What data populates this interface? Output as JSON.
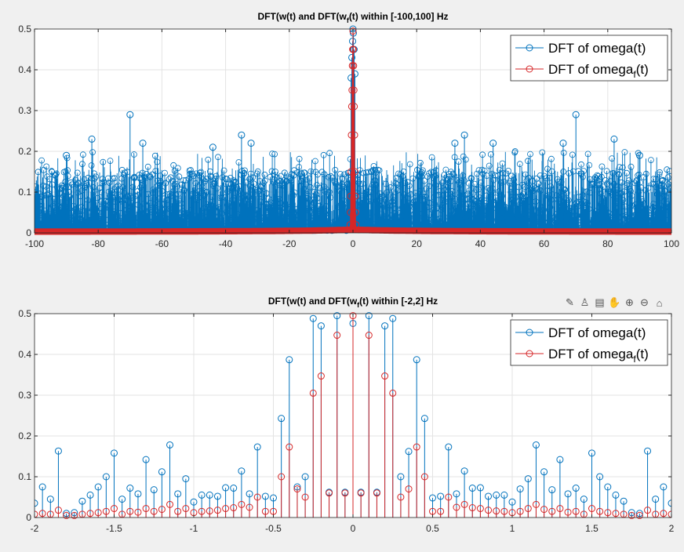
{
  "chart_data": [
    {
      "type": "stem",
      "title_main": "DFT(w(t) and DFT(w",
      "title_sub": "f",
      "title_tail": "(t) within [-100,100] Hz",
      "xlim": [
        -100,
        100
      ],
      "ylim": [
        0,
        0.5
      ],
      "xticks": [
        "-100",
        "-80",
        "-60",
        "-40",
        "-20",
        "0",
        "20",
        "40",
        "60",
        "80",
        "100"
      ],
      "yticks": [
        "0",
        "0.1",
        "0.2",
        "0.3",
        "0.4",
        "0.5"
      ],
      "grid": true,
      "legend_position": "top-right",
      "series": [
        {
          "name": "DFT of omega(t)",
          "color": "#0072bd",
          "description_values": "dense noise floor 0–0.2 across the band, central peak 0.5 at 0",
          "peaks": [
            {
              "x": 0,
              "y": 0.5
            },
            {
              "x": -70,
              "y": 0.29
            },
            {
              "x": 70,
              "y": 0.29
            },
            {
              "x": -82,
              "y": 0.23
            },
            {
              "x": 82,
              "y": 0.23
            },
            {
              "x": -66,
              "y": 0.22
            },
            {
              "x": 66,
              "y": 0.22
            },
            {
              "x": -35,
              "y": 0.24
            },
            {
              "x": 35,
              "y": 0.24
            },
            {
              "x": -32,
              "y": 0.22
            },
            {
              "x": 32,
              "y": 0.22
            },
            {
              "x": -44,
              "y": 0.21
            },
            {
              "x": 44,
              "y": 0.22
            },
            {
              "x": -90,
              "y": 0.19
            },
            {
              "x": 90,
              "y": 0.19
            }
          ]
        },
        {
          "name": "DFT of omega",
          "sub": "f",
          "name_tail": "(t)",
          "color": "#d62728",
          "peaks": [
            {
              "x": 0,
              "y": 0.5
            },
            {
              "x": -0.1,
              "y": 0.45
            },
            {
              "x": 0.1,
              "y": 0.45
            },
            {
              "x": -0.2,
              "y": 0.35
            },
            {
              "x": 0.2,
              "y": 0.35
            }
          ]
        }
      ]
    },
    {
      "type": "stem",
      "title_main": "DFT(w(t) and DFT(w",
      "title_sub": "f",
      "title_tail": "(t) within [-2,2] Hz",
      "xlim": [
        -2,
        2
      ],
      "ylim": [
        0,
        0.5
      ],
      "xticks": [
        "-2",
        "-1.5",
        "-1",
        "-0.5",
        "0",
        "0.5",
        "1",
        "1.5",
        "2"
      ],
      "yticks": [
        "0",
        "0.1",
        "0.2",
        "0.3",
        "0.4",
        "0.5"
      ],
      "grid": true,
      "legend_position": "top-right",
      "x": [
        -2,
        -1.95,
        -1.9,
        -1.85,
        -1.8,
        -1.75,
        -1.7,
        -1.65,
        -1.6,
        -1.55,
        -1.5,
        -1.45,
        -1.4,
        -1.35,
        -1.3,
        -1.25,
        -1.2,
        -1.15,
        -1.1,
        -1.05,
        -1,
        -0.95,
        -0.9,
        -0.85,
        -0.8,
        -0.75,
        -0.7,
        -0.65,
        -0.6,
        -0.55,
        -0.5,
        -0.45,
        -0.4,
        -0.35,
        -0.3,
        -0.25,
        -0.2,
        -0.15,
        -0.1,
        -0.05,
        0,
        0.05,
        0.1,
        0.15,
        0.2,
        0.25,
        0.3,
        0.35,
        0.4,
        0.45,
        0.5,
        0.55,
        0.6,
        0.65,
        0.7,
        0.75,
        0.8,
        0.85,
        0.9,
        0.95,
        1,
        1.05,
        1.1,
        1.15,
        1.2,
        1.25,
        1.3,
        1.35,
        1.4,
        1.45,
        1.5,
        1.55,
        1.6,
        1.65,
        1.7,
        1.75,
        1.8,
        1.85,
        1.9,
        1.95,
        2
      ],
      "series": [
        {
          "name": "DFT of omega(t)",
          "color": "#0072bd",
          "values": [
            0.035,
            0.075,
            0.045,
            0.163,
            0.01,
            0.012,
            0.04,
            0.055,
            0.075,
            0.1,
            0.158,
            0.045,
            0.072,
            0.058,
            0.142,
            0.068,
            0.112,
            0.178,
            0.058,
            0.095,
            0.038,
            0.055,
            0.055,
            0.052,
            0.073,
            0.072,
            0.114,
            0.058,
            0.173,
            0.052,
            0.048,
            0.243,
            0.387,
            0.075,
            0.1,
            0.488,
            0.47,
            0.062,
            0.495,
            0.062,
            0.476,
            0.062,
            0.495,
            0.062,
            0.47,
            0.488,
            0.1,
            0.162,
            0.387,
            0.243,
            0.048,
            0.052,
            0.173,
            0.058,
            0.114,
            0.072,
            0.073,
            0.052,
            0.055,
            0.055,
            0.038,
            0.07,
            0.095,
            0.178,
            0.112,
            0.068,
            0.142,
            0.058,
            0.072,
            0.045,
            0.158,
            0.1,
            0.075,
            0.055,
            0.04,
            0.012,
            0.01,
            0.163,
            0.045,
            0.075,
            0.035
          ]
        },
        {
          "name": "DFT of omega",
          "sub": "f",
          "name_tail": "(t)",
          "color": "#d62728",
          "values": [
            0.008,
            0.01,
            0.008,
            0.018,
            0.005,
            0.005,
            0.008,
            0.01,
            0.012,
            0.015,
            0.022,
            0.008,
            0.015,
            0.013,
            0.022,
            0.015,
            0.02,
            0.032,
            0.015,
            0.022,
            0.012,
            0.015,
            0.016,
            0.018,
            0.022,
            0.024,
            0.032,
            0.025,
            0.05,
            0.015,
            0.015,
            0.1,
            0.173,
            0.07,
            0.05,
            0.305,
            0.347,
            0.06,
            0.447,
            0.06,
            0.495,
            0.06,
            0.447,
            0.06,
            0.347,
            0.305,
            0.05,
            0.07,
            0.173,
            0.1,
            0.015,
            0.015,
            0.05,
            0.025,
            0.032,
            0.024,
            0.022,
            0.018,
            0.016,
            0.015,
            0.012,
            0.015,
            0.022,
            0.032,
            0.02,
            0.015,
            0.022,
            0.013,
            0.015,
            0.008,
            0.022,
            0.015,
            0.012,
            0.01,
            0.008,
            0.005,
            0.005,
            0.018,
            0.008,
            0.01,
            0.008
          ]
        }
      ]
    }
  ],
  "toolbar": {
    "icons": [
      "brush-icon",
      "datatip-icon",
      "rotate-icon",
      "pan-icon",
      "zoom-in-icon",
      "zoom-out-icon",
      "home-icon"
    ],
    "glyphs": [
      "✎",
      "♙",
      "▤",
      "✋",
      "⊕",
      "⊖",
      "⌂"
    ]
  }
}
